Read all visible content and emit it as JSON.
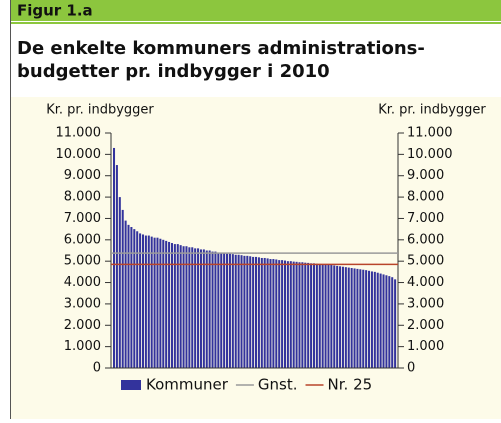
{
  "chart_data": {
    "type": "bar",
    "figure_label": "Figur 1.a",
    "title_lines": [
      "De enkelte kommuners administrations-",
      "budgetter pr. indbygger i 2010"
    ],
    "ylabel": "Kr. pr. indbygger",
    "y2label": "Kr. pr. indbygger",
    "ylim": [
      0,
      11000
    ],
    "yticks": [
      0,
      {
        "value": 1000,
        "label": "1.000"
      },
      {
        "value": 2000,
        "label": "2.000"
      },
      {
        "value": 3000,
        "label": "3.000"
      },
      {
        "value": 4000,
        "label": "4.000"
      },
      {
        "value": 5000,
        "label": "5.000"
      },
      {
        "value": 6000,
        "label": "6.000"
      },
      {
        "value": 7000,
        "label": "7.000"
      },
      {
        "value": 8000,
        "label": "8.000"
      },
      {
        "value": 9000,
        "label": "9.000"
      },
      {
        "value": 10000,
        "label": "10.000"
      },
      {
        "value": 11000,
        "label": "11.000"
      }
    ],
    "y2lim": [
      0,
      11000
    ],
    "y2ticks": [
      0,
      {
        "value": 1000,
        "label": "1.000"
      },
      {
        "value": 2000,
        "label": "2.000"
      },
      {
        "value": 3000,
        "label": "3.000"
      },
      {
        "value": 4000,
        "label": "4.000"
      },
      {
        "value": 5000,
        "label": "5.000"
      },
      {
        "value": 6000,
        "label": "6.000"
      },
      {
        "value": 7000,
        "label": "7.000"
      },
      {
        "value": 8000,
        "label": "8.000"
      },
      {
        "value": 9000,
        "label": "9.000"
      },
      {
        "value": 10000,
        "label": "10.000"
      },
      {
        "value": 11000,
        "label": "11.000"
      }
    ],
    "series": [
      {
        "name": "Kommuner",
        "color": "#33339c",
        "values": [
          10300,
          9500,
          8000,
          7400,
          6900,
          6700,
          6600,
          6500,
          6400,
          6300,
          6250,
          6200,
          6200,
          6150,
          6100,
          6100,
          6050,
          6000,
          5950,
          5900,
          5850,
          5800,
          5800,
          5750,
          5700,
          5700,
          5650,
          5650,
          5600,
          5600,
          5550,
          5550,
          5500,
          5500,
          5450,
          5450,
          5400,
          5400,
          5380,
          5350,
          5350,
          5330,
          5300,
          5300,
          5280,
          5250,
          5250,
          5230,
          5200,
          5200,
          5180,
          5150,
          5150,
          5130,
          5100,
          5100,
          5080,
          5050,
          5050,
          5030,
          5000,
          5000,
          4980,
          4970,
          4950,
          4950,
          4930,
          4920,
          4900,
          4900,
          4880,
          4870,
          4860,
          4850,
          4830,
          4820,
          4800,
          4780,
          4760,
          4740,
          4720,
          4700,
          4680,
          4660,
          4640,
          4620,
          4600,
          4580,
          4550,
          4520,
          4500,
          4460,
          4420,
          4380,
          4340,
          4300,
          4250,
          4150
        ]
      }
    ],
    "reference_lines": [
      {
        "name": "Gnst.",
        "color": "#9a9a9a",
        "value": 5380
      },
      {
        "name": "Nr. 25",
        "color": "#b8442a",
        "value": 4850
      }
    ]
  }
}
